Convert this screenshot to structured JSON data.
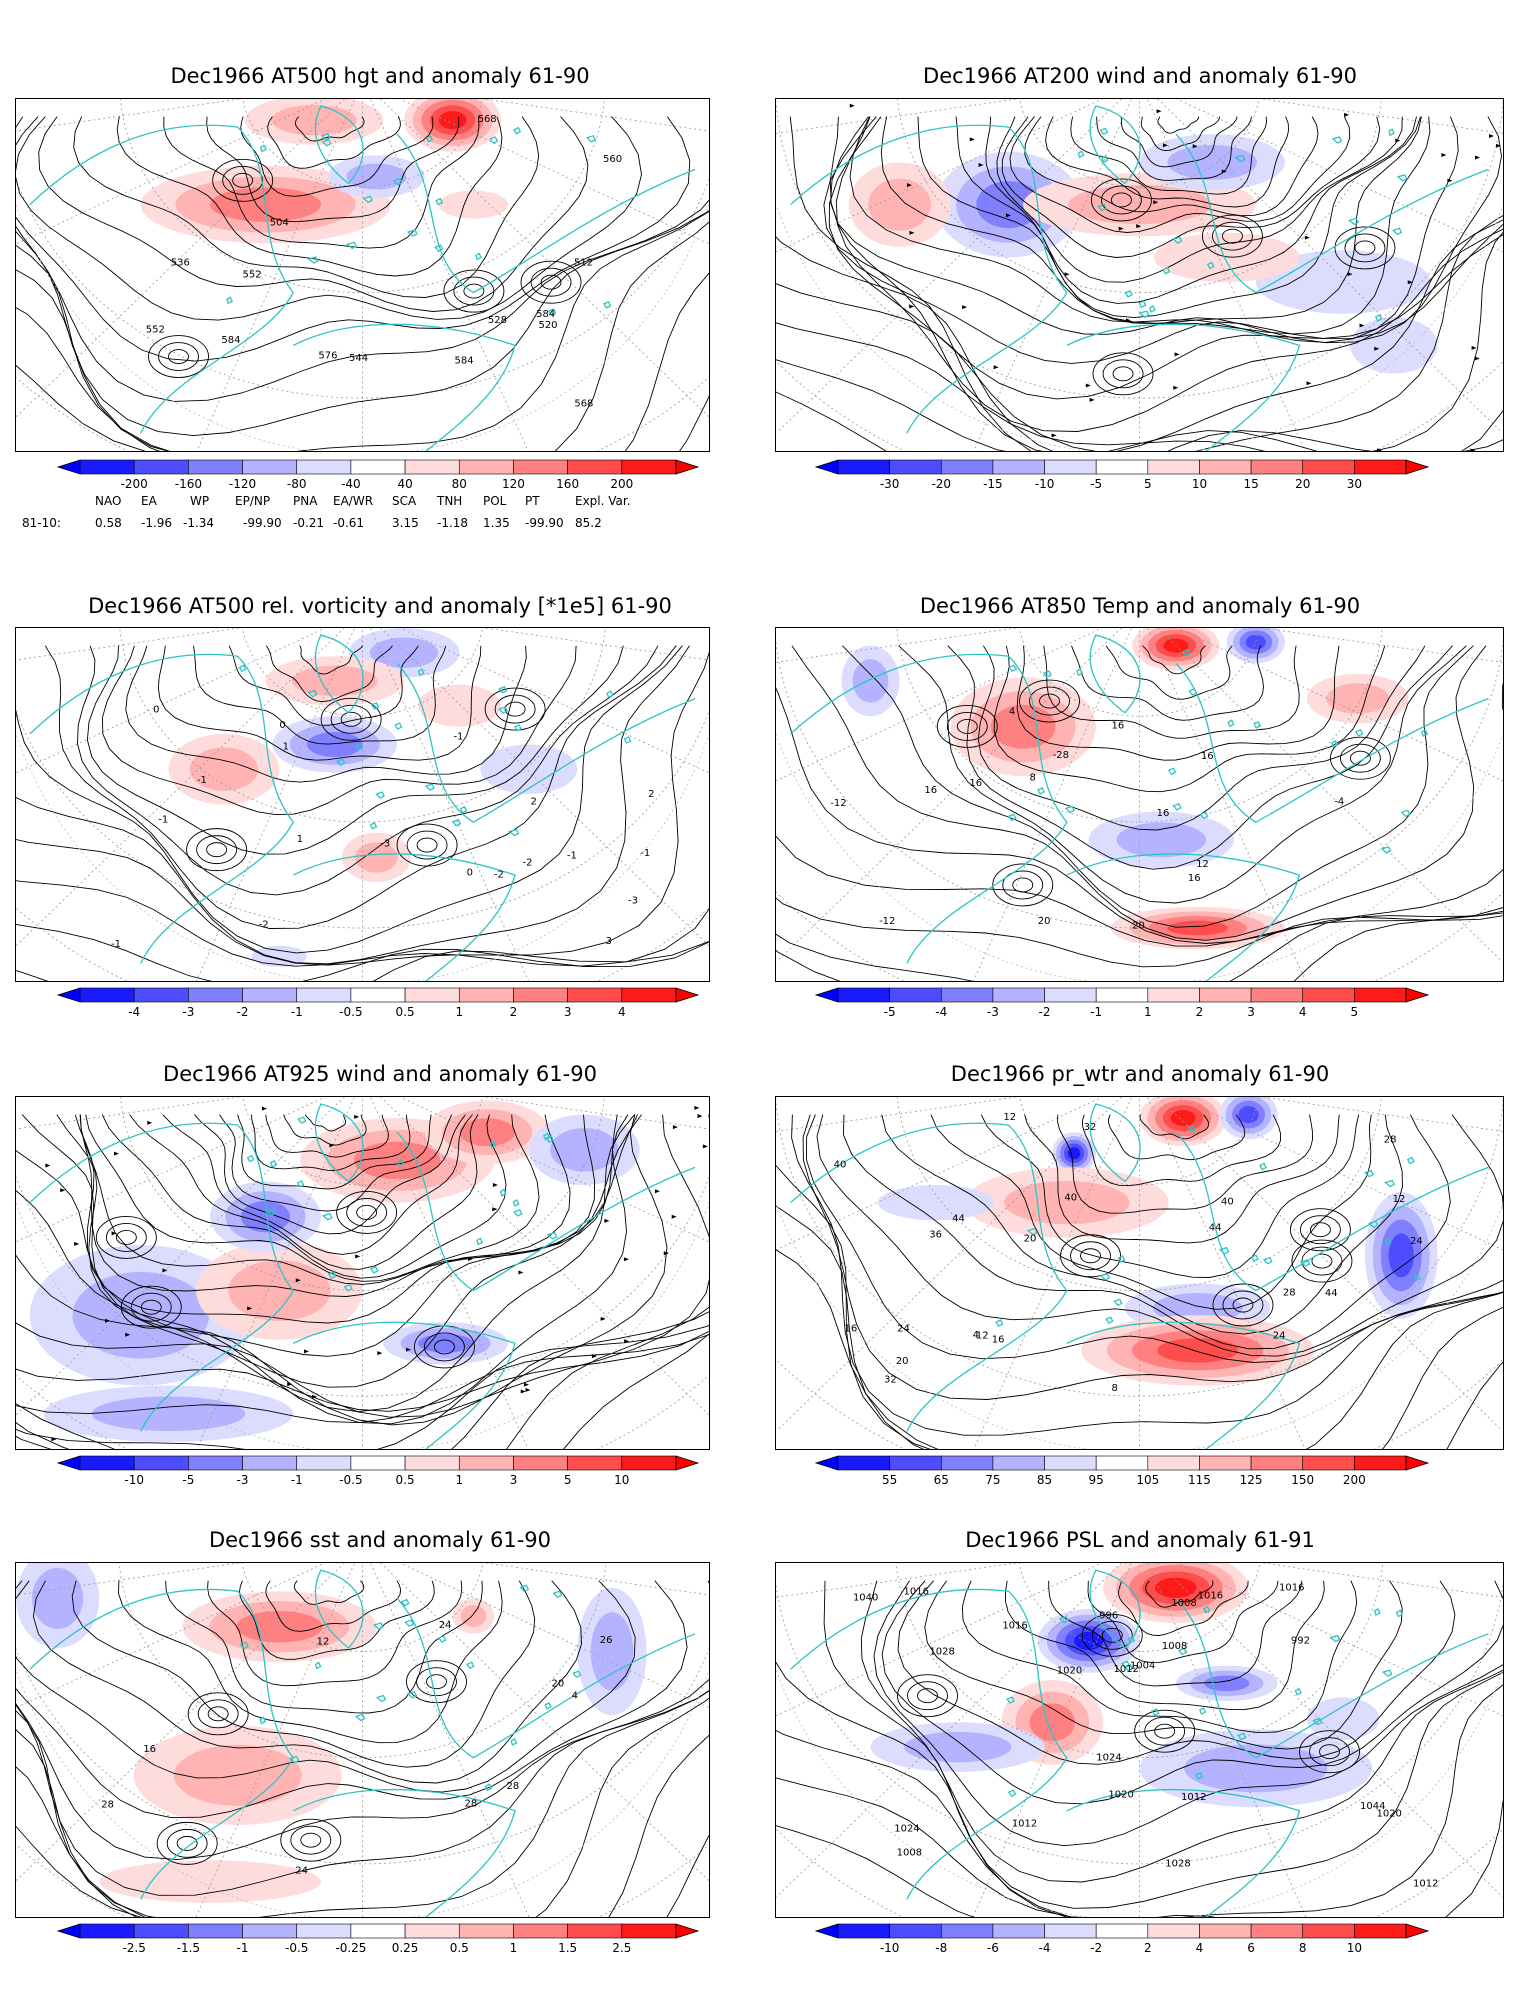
{
  "colors": {
    "coast": "#2ec4c4",
    "contour": "#000000",
    "grid": "#999999",
    "blue_ramp": [
      "#1a1aff",
      "#4d4dff",
      "#8080ff",
      "#b3b3ff",
      "#dcdcff"
    ],
    "red_ramp": [
      "#ffdcdc",
      "#ffb3b3",
      "#ff8080",
      "#ff4d4d",
      "#ff1a1a"
    ]
  },
  "panels": [
    {
      "id": "hgt500",
      "title": "Dec1966 AT500 hgt and anomaly 61-90",
      "colorbar_ticks": [
        "-200",
        "-160",
        "-120",
        "-80",
        "-40",
        "40",
        "80",
        "120",
        "160",
        "200"
      ],
      "contour_labels": [
        "584",
        "504",
        "552",
        "512",
        "520",
        "528",
        "536",
        "544",
        "552",
        "560",
        "568",
        "568",
        "576",
        "584",
        "584"
      ]
    },
    {
      "id": "wind200",
      "title": "Dec1966 AT200 wind and anomaly 61-90",
      "colorbar_ticks": [
        "-30",
        "-20",
        "-15",
        "-10",
        "-5",
        "5",
        "10",
        "15",
        "20",
        "30"
      ],
      "contour_labels": []
    },
    {
      "id": "vort500",
      "title": "Dec1966 AT500 rel. vorticity and anomaly [*1e5] 61-90",
      "colorbar_ticks": [
        "-4",
        "-3",
        "-2",
        "-1",
        "-0.5",
        "0.5",
        "1",
        "2",
        "3",
        "4"
      ],
      "contour_labels": [
        "-2",
        "-1",
        "0",
        "-3",
        "-1",
        "2",
        "3",
        "-1",
        "-2",
        "-3",
        "1",
        "-1",
        "0",
        "2",
        "-2",
        "-1",
        "1",
        "0",
        "-1"
      ]
    },
    {
      "id": "temp850",
      "title": "Dec1966 AT850 Temp and anomaly 61-90",
      "colorbar_ticks": [
        "-5",
        "-4",
        "-3",
        "-2",
        "-1",
        "1",
        "2",
        "3",
        "4",
        "5"
      ],
      "contour_labels": [
        "16",
        "16",
        "-28",
        "-12",
        "-4",
        "8",
        "4",
        "16",
        "12",
        "20",
        "16",
        "16",
        "20",
        "-12",
        "16"
      ]
    },
    {
      "id": "wind925",
      "title": "Dec1966 AT925 wind and anomaly 61-90",
      "colorbar_ticks": [
        "-10",
        "-5",
        "-3",
        "-1",
        "-0.5",
        "0.5",
        "1",
        "3",
        "5",
        "10"
      ],
      "contour_labels": []
    },
    {
      "id": "prwtr",
      "title": "Dec1966 pr_wtr and anomaly 61-90",
      "colorbar_ticks": [
        "55",
        "65",
        "75",
        "85",
        "95",
        "105",
        "115",
        "125",
        "150",
        "200"
      ],
      "contour_labels": [
        "44",
        "24",
        "28",
        "32",
        "36",
        "40",
        "16",
        "20",
        "12",
        "24",
        "28",
        "40",
        "44",
        "16",
        "12",
        "20",
        "24",
        "32",
        "40",
        "44",
        "8",
        "4",
        "12"
      ]
    },
    {
      "id": "sst",
      "title": "Dec1966 sst and anomaly 61-90",
      "colorbar_ticks": [
        "-2.5",
        "-1.5",
        "-1",
        "-0.5",
        "-0.25",
        "0.25",
        "0.5",
        "1",
        "1.5",
        "2.5"
      ],
      "contour_labels": [
        "24",
        "4",
        "12",
        "16",
        "20",
        "26",
        "24",
        "28",
        "28",
        "28"
      ]
    },
    {
      "id": "psl",
      "title": "Dec1966 PSL and anomaly 61-91",
      "colorbar_ticks": [
        "-10",
        "-8",
        "-6",
        "-4",
        "-2",
        "2",
        "4",
        "6",
        "8",
        "10"
      ],
      "contour_labels": [
        "1020",
        "1016",
        "1024",
        "1028",
        "1004",
        "996",
        "992",
        "1040",
        "1044",
        "1028",
        "1012",
        "1016",
        "1020",
        "1024",
        "1020",
        "1016",
        "1012",
        "1008",
        "1008",
        "1012",
        "1016",
        "1008",
        "1012"
      ]
    }
  ],
  "indices": {
    "header": [
      "NAO",
      "EA",
      "WP",
      "EP/NP",
      "PNA",
      "EA/WR",
      "SCA",
      "TNH",
      "POL",
      "PT",
      "Expl. Var."
    ],
    "row_label": "81-10:",
    "values": [
      "0.58",
      "-1.96",
      "-1.34",
      "-99.90",
      "-0.21",
      "-0.61",
      "3.15",
      "-1.18",
      "1.35",
      "-99.90",
      "85.2"
    ]
  }
}
